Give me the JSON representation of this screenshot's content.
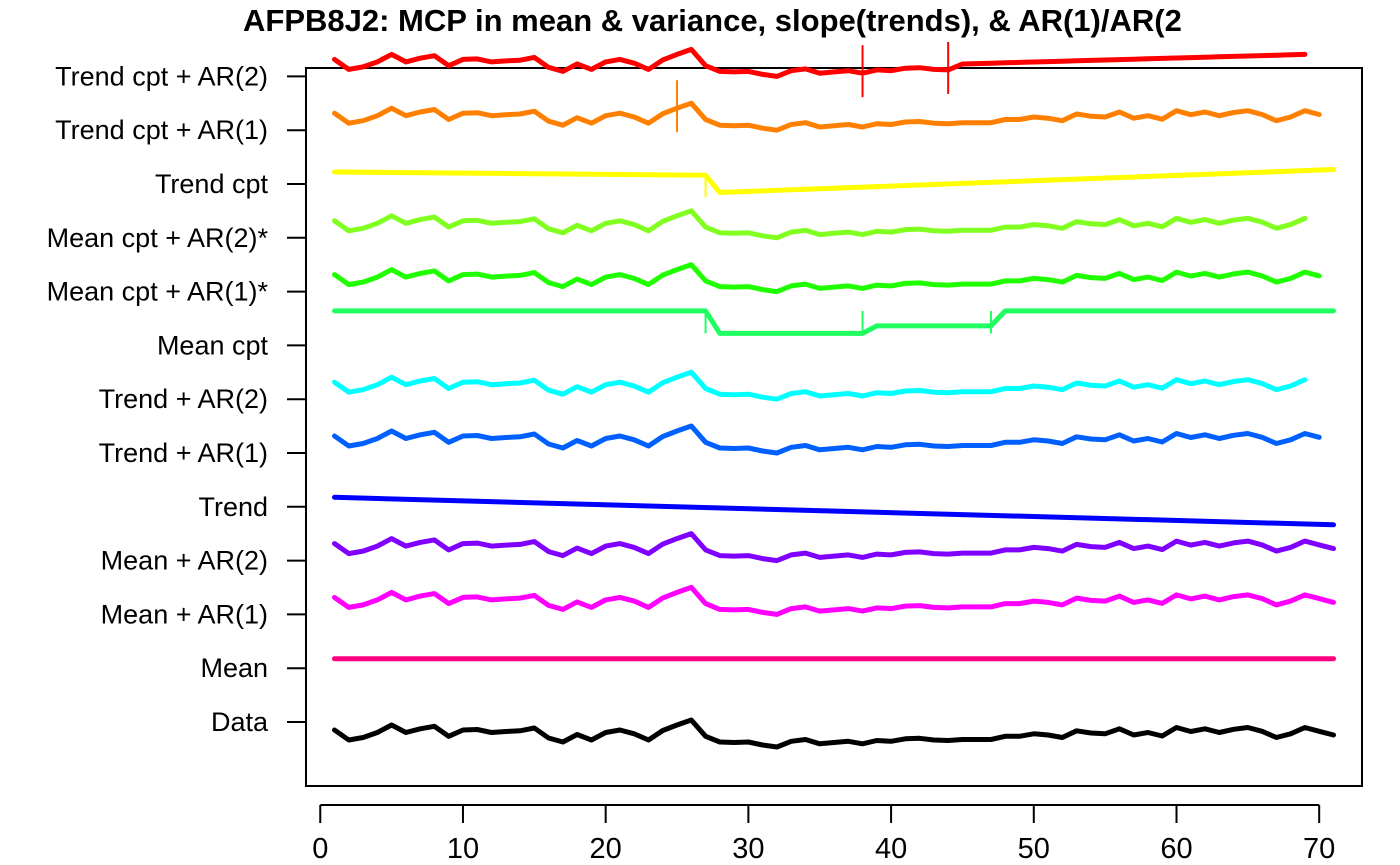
{
  "chart_data": {
    "type": "line",
    "title": "AFPB8J2: MCP in mean & variance, slope(trends), & AR(1)/AR(2",
    "xlabel": "",
    "ylabel": "",
    "xlim": [
      -1,
      73
    ],
    "x_ticks": [
      0,
      10,
      20,
      30,
      40,
      50,
      60,
      70
    ],
    "grid": false,
    "legend": "none",
    "row_labels": [
      "Data",
      "Mean",
      "Mean + AR(1)",
      "Mean + AR(2)",
      "Trend",
      "Trend + AR(1)",
      "Trend + AR(2)",
      "Mean cpt",
      "Mean cpt + AR(1)*",
      "Mean cpt + AR(2)*",
      "Trend cpt",
      "Trend cpt + AR(1)",
      "Trend cpt + AR(2)"
    ],
    "data_values": [
      0.2,
      -0.2,
      -0.1,
      0.1,
      0.4,
      0.1,
      0.25,
      0.35,
      -0.05,
      0.2,
      0.22,
      0.1,
      0.14,
      0.17,
      0.28,
      -0.12,
      -0.28,
      0.02,
      -0.2,
      0.1,
      0.2,
      0.05,
      -0.2,
      0.18,
      0.4,
      0.6,
      -0.05,
      -0.28,
      -0.3,
      -0.28,
      -0.4,
      -0.48,
      -0.25,
      -0.18,
      -0.35,
      -0.3,
      -0.25,
      -0.35,
      -0.22,
      -0.25,
      -0.15,
      -0.13,
      -0.2,
      -0.22,
      -0.18,
      -0.18,
      -0.18,
      -0.05,
      -0.05,
      0.05,
      0,
      -0.1,
      0.17,
      0.08,
      0.05,
      0.25,
      0,
      0.1,
      -0.04,
      0.3,
      0.14,
      0.25,
      0.1,
      0.23,
      0.3,
      0.15,
      -0.1,
      0.05,
      0.3,
      0.15,
      0
    ],
    "series": [
      {
        "row": 0,
        "kind": "data",
        "color": "#000000"
      },
      {
        "row": 1,
        "kind": "mean",
        "color": "#FF0080",
        "mean": 0.9
      },
      {
        "row": 2,
        "kind": "data",
        "color": "#FF00FF",
        "end": 71,
        "offset": 1.0
      },
      {
        "row": 3,
        "kind": "data",
        "color": "#8000FF",
        "end": 71,
        "offset": 1.0
      },
      {
        "row": 4,
        "kind": "trend",
        "color": "#0000FF",
        "start": 0.9,
        "end": -0.2
      },
      {
        "row": 5,
        "kind": "data",
        "color": "#0060FF",
        "end": 70,
        "offset": 1.0
      },
      {
        "row": 6,
        "kind": "data",
        "color": "#00FFFF",
        "end": 69,
        "offset": 1.0
      },
      {
        "row": 7,
        "kind": "meancpt",
        "color": "#20FF60",
        "segments": [
          [
            1,
            27,
            1.9
          ],
          [
            28,
            38,
            1.0
          ],
          [
            39,
            47,
            1.3
          ],
          [
            48,
            71,
            1.9
          ]
        ],
        "cpts": [
          27,
          38,
          47
        ]
      },
      {
        "row": 8,
        "kind": "data",
        "color": "#20FF00",
        "end": 70,
        "offset": 1.0
      },
      {
        "row": 9,
        "kind": "data",
        "color": "#80FF20",
        "end": 69,
        "offset": 1.0
      },
      {
        "row": 10,
        "kind": "trendcpt",
        "color": "#FFFF00",
        "points": [
          [
            1,
            1.0
          ],
          [
            27,
            0.87
          ],
          [
            28,
            0.18
          ],
          [
            71,
            1.1
          ]
        ],
        "cpts": [
          27
        ]
      },
      {
        "row": 11,
        "kind": "data",
        "color": "#FF8000",
        "end": 70,
        "offset": 1.0,
        "cpts": [
          25
        ]
      },
      {
        "row": 12,
        "kind": "data",
        "color": "#FF0000",
        "end": 69,
        "offset": 1.0,
        "cpts": [
          38,
          44
        ],
        "flatten_after": 44,
        "flat_start": 1.0,
        "flat_end": 1.4
      }
    ]
  }
}
